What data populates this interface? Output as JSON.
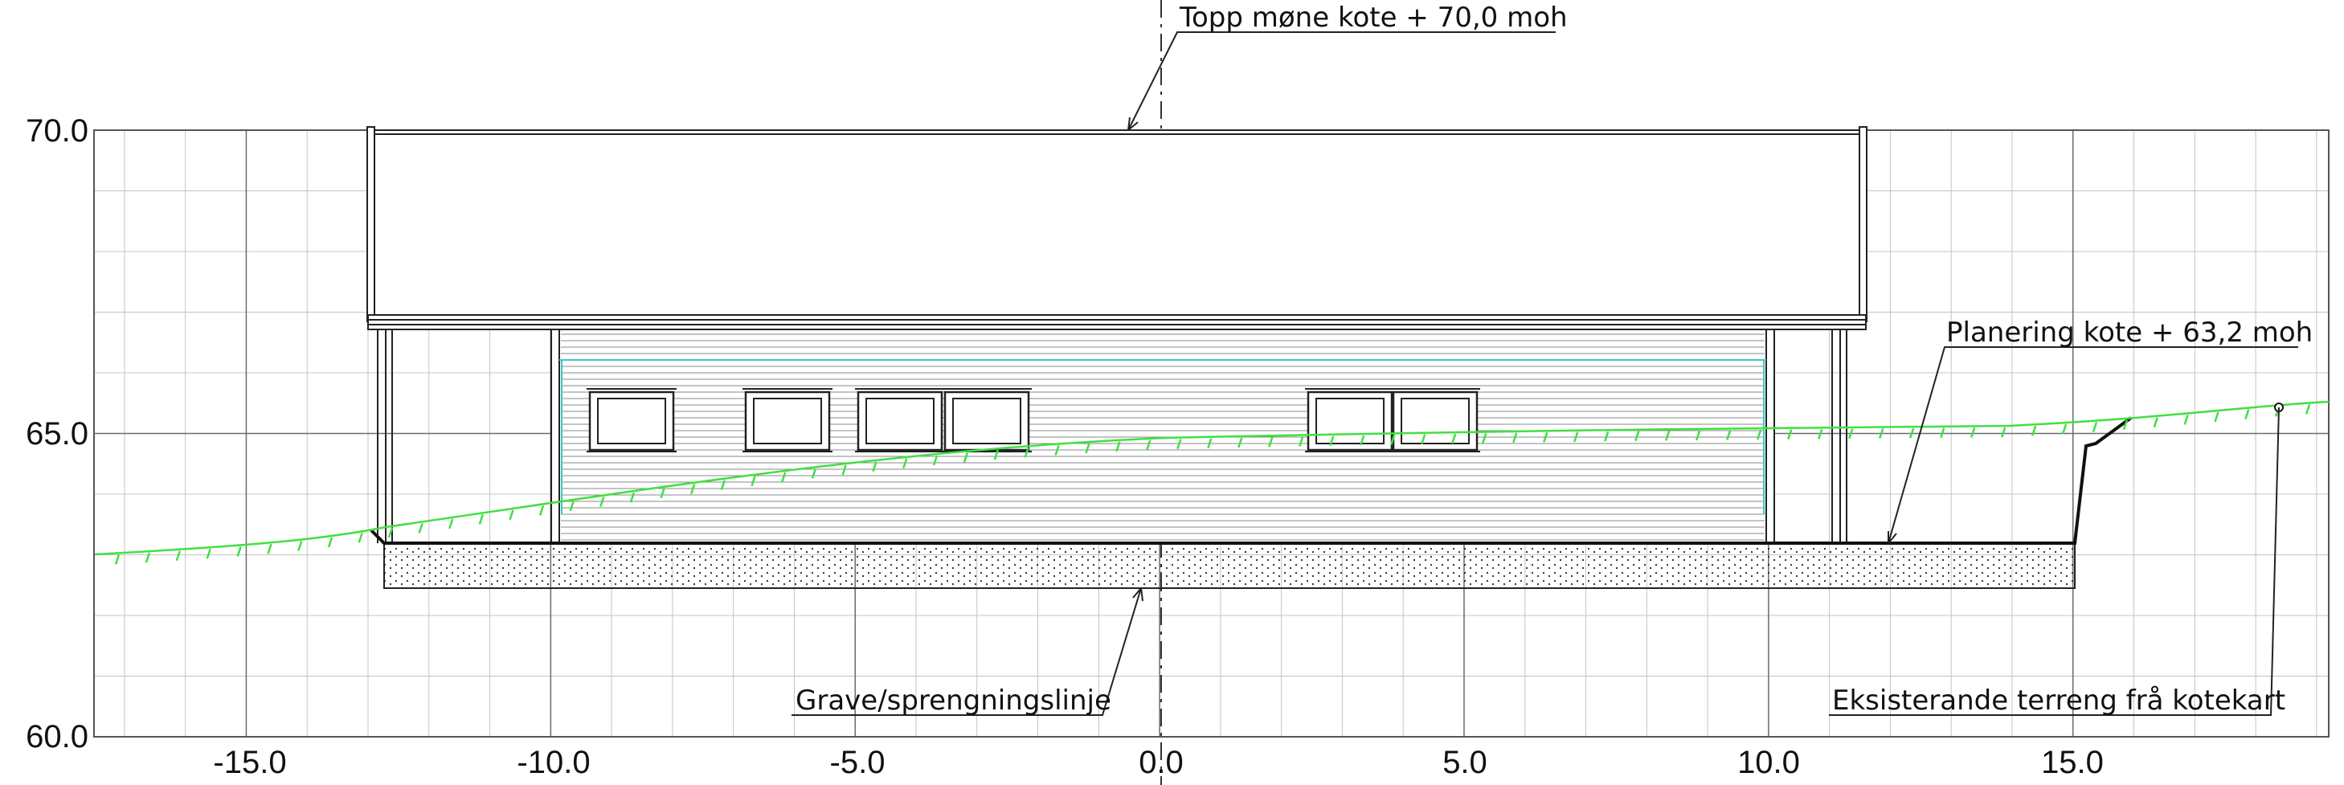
{
  "diagram": {
    "y_axis": {
      "min": 60.0,
      "max": 70.0,
      "labeled_ticks": [
        "60.0",
        "65.0",
        "70.0"
      ]
    },
    "x_axis": {
      "min": -17.5,
      "max": 19.2,
      "labeled_ticks": [
        "-15.0",
        "-10.0",
        "-5.0",
        "0.0",
        "5.0",
        "10.0",
        "15.0"
      ]
    },
    "annotations": {
      "ridge": "Topp møne kote + 70,0 moh",
      "planering": "Planering kote + 63,2 moh",
      "excavation": "Grave/sprengningslinje",
      "existing_terrain": "Eksisterande terreng frå kotekart"
    },
    "levels": {
      "ridge_level": 70.0,
      "planering_level": 63.2
    },
    "colors": {
      "grid_major": "#6a6a6a",
      "grid_minor": "#c4c4c4",
      "building_line": "#222222",
      "terrain": "#40e040",
      "wall_accent": "#3cc8c8"
    }
  }
}
